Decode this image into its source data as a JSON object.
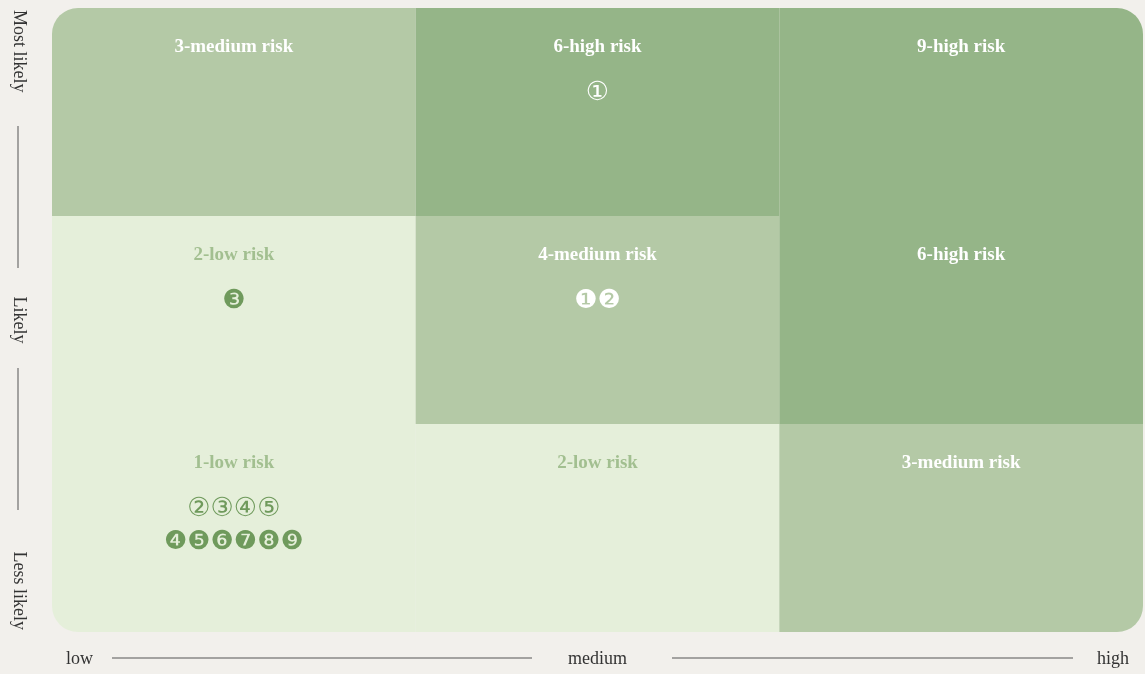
{
  "chart_data": {
    "type": "heatmap",
    "categories": [
      "low",
      "medium",
      "high"
    ],
    "y_categories": [
      "Most likely",
      "Likely",
      "Less likely"
    ],
    "cells": [
      [
        3,
        6,
        9
      ],
      [
        2,
        4,
        6
      ],
      [
        1,
        2,
        3
      ]
    ],
    "cell_labels": [
      [
        "3-medium risk",
        "6-high risk\n①",
        "9-high risk"
      ],
      [
        "2-low risk\n❸",
        "4-medium risk\n❶❷",
        "6-high risk"
      ],
      [
        "1-low risk\n②③④⑤\n❹❺❻❼❽❾",
        "2-low risk",
        "3-medium risk"
      ]
    ],
    "colors": [
      "#e5efda",
      "#b4c9a6",
      "#95b588"
    ]
  }
}
